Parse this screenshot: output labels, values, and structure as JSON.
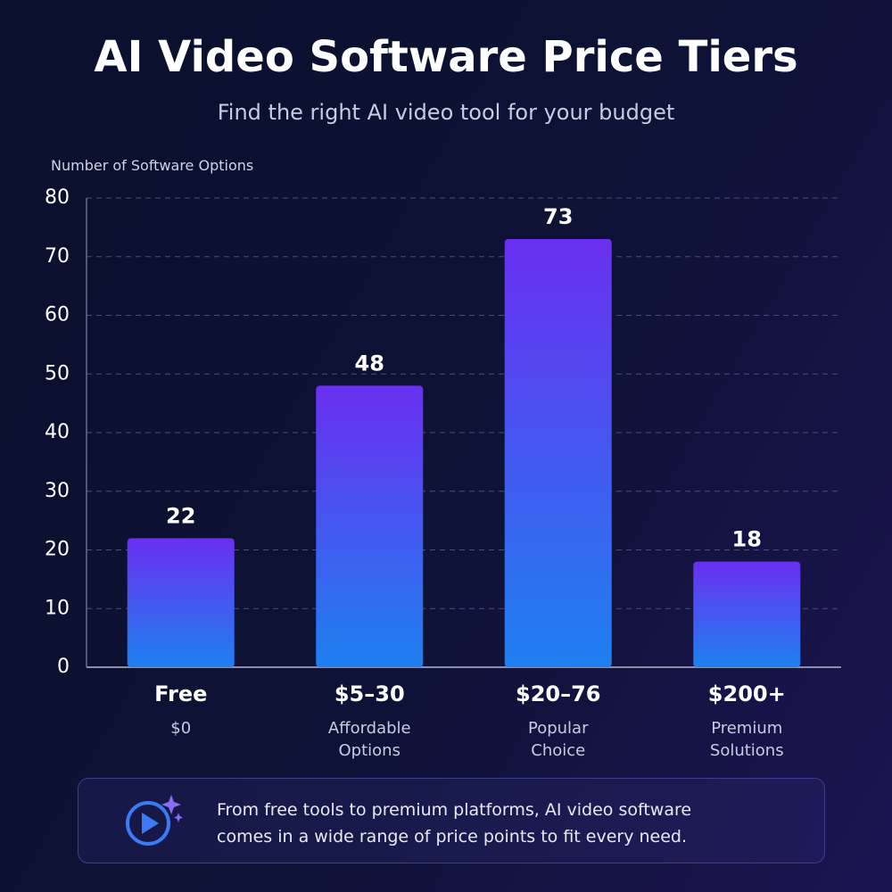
{
  "chart_data": {
    "type": "bar",
    "title": "AI Video Software Price Tiers",
    "subtitle": "Find the right AI video tool for your budget",
    "y_label": "Number of Software Options",
    "categories": [
      "Free",
      "$5–30",
      "$20–76",
      "$200+"
    ],
    "category_notes": [
      "$0",
      "Affordable Options",
      "Popular Choice",
      "Premium Solutions"
    ],
    "values": [
      22,
      48,
      73,
      18
    ],
    "color": [
      "#6a2ff0",
      "#1e80f0"
    ],
    "ylim": [
      0,
      80
    ],
    "yticks": [
      0,
      10,
      20,
      30,
      40,
      50,
      60,
      70,
      80
    ],
    "grid": true,
    "footer": "From free tools to premium platforms, AI video software comes in a wide range of price points to fit every need."
  }
}
